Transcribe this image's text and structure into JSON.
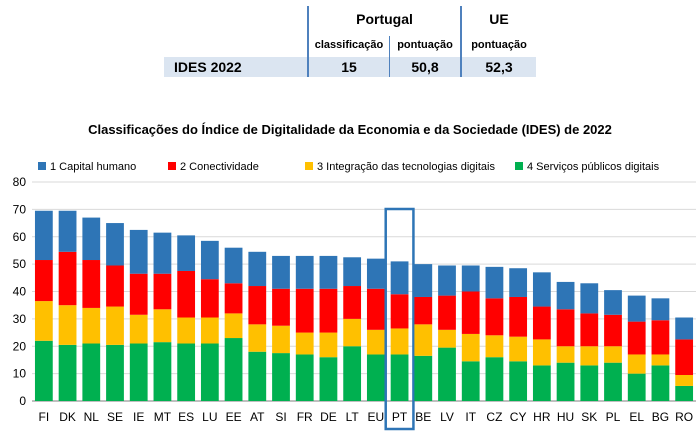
{
  "summary_table": {
    "row_label": "IDES 2022",
    "portugal": {
      "header": "Portugal",
      "rank_label": "classificação",
      "score_label": "pontuação",
      "rank": "15",
      "score": "50,8"
    },
    "eu": {
      "header": "UE",
      "score_label": "pontuação",
      "score": "52,3"
    }
  },
  "chart_data": {
    "type": "bar",
    "stacked": true,
    "title": "Classificações do Índice de Digitalidade da Economia e da Sociedade (IDES) de 2022",
    "ylim": [
      0,
      80
    ],
    "yticks": [
      0,
      10,
      20,
      30,
      40,
      50,
      60,
      70,
      80
    ],
    "grid": true,
    "legend_position": "top",
    "highlight_category": "PT",
    "categories": [
      "FI",
      "DK",
      "NL",
      "SE",
      "IE",
      "MT",
      "ES",
      "LU",
      "EE",
      "AT",
      "SI",
      "FR",
      "DE",
      "LT",
      "EU",
      "PT",
      "BE",
      "LV",
      "IT",
      "CZ",
      "CY",
      "HR",
      "HU",
      "SK",
      "PL",
      "EL",
      "BG",
      "RO"
    ],
    "series": [
      {
        "name": "4 Serviços públicos digitais",
        "color": "#00b050",
        "values": [
          22,
          20.5,
          21,
          20.5,
          21,
          21.5,
          21,
          21,
          23,
          18,
          17.5,
          17,
          16,
          20,
          17,
          17,
          16.5,
          19.5,
          14.5,
          16,
          14.5,
          13,
          14,
          13,
          14,
          10,
          13,
          5.5
        ]
      },
      {
        "name": "3 Integração das tecnologias digitais",
        "color": "#ffc000",
        "values": [
          14.5,
          14.5,
          13,
          14,
          10.5,
          12,
          9.5,
          9.5,
          9,
          10,
          10,
          8,
          9,
          10,
          9,
          9.5,
          11.5,
          6.5,
          10,
          8,
          9,
          9.5,
          6,
          7,
          6,
          7,
          4,
          4
        ]
      },
      {
        "name": "2 Conectividade",
        "color": "#ff0000",
        "values": [
          15,
          19.5,
          17.5,
          15,
          15,
          13,
          17,
          14,
          11,
          14,
          13.5,
          16,
          16,
          12,
          15,
          12.5,
          10,
          12.5,
          15.5,
          13.5,
          14.5,
          12,
          13.5,
          12,
          11.5,
          12,
          12.5,
          13
        ]
      },
      {
        "name": "1 Capital humano",
        "color": "#2e75b6",
        "values": [
          18,
          15,
          15.5,
          15.5,
          16,
          15,
          13,
          14,
          13,
          12.5,
          12,
          12,
          12,
          10.5,
          11,
          12,
          12,
          11,
          9.5,
          11.5,
          10.5,
          12.5,
          10,
          11,
          9,
          9.5,
          8,
          8
        ]
      }
    ]
  }
}
